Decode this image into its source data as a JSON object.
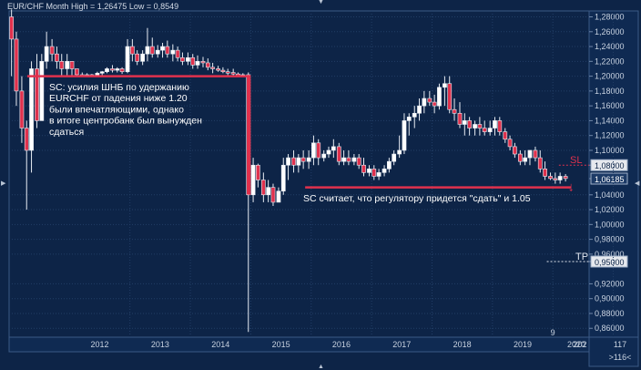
{
  "header": {
    "title": "EUR/CHF Month High = 1,26475 Low = 0,8549"
  },
  "colors": {
    "background": "#0d2447",
    "grid": "#223e66",
    "up_candle": "#ffffff",
    "down_candle": "#e0314d",
    "annotation_line": "#e0314d",
    "text": "#d6dde8"
  },
  "chart_data": {
    "type": "candlestick",
    "title": "EUR/CHF Month",
    "high_label": "High = 1,26475",
    "low_label": "Low = 0,8549",
    "ylim": [
      0.848,
      1.288
    ],
    "y_ticks": [
      "1,28000",
      "1,26000",
      "1,24000",
      "1,22000",
      "1,20000",
      "1,18000",
      "1,16000",
      "1,14000",
      "1,12000",
      "1,10000",
      "1,08000",
      "1,06185",
      "1,04000",
      "1,02000",
      "1,00000",
      "0,98000",
      "0,96000",
      "0,95000",
      "0,92000",
      "0,90000",
      "0,88000",
      "0,86000"
    ],
    "x_ticks": [
      "2012",
      "2013",
      "2014",
      "2015",
      "2016",
      "2017",
      "2018",
      "2019",
      "2020",
      "202"
    ],
    "x_extra": [
      "9"
    ],
    "current_price": "1,06185",
    "sl_price": "1,08000",
    "tp_price": "0,95000",
    "labels": {
      "sl": "SL",
      "tp": "TP"
    },
    "corner": {
      "top": "117",
      "bottom": ">116<"
    },
    "annotations": [
      {
        "text": "SC: усилия ШНБ по удержанию\nEURCHF от падения ниже 1.20\nбыли впечатляющими, однако\nв итоге центробанк был вынужден\nсдаться"
      },
      {
        "text": "SC считает, что регулятору придется \"сдать\" и 1.05"
      }
    ],
    "series": [
      {
        "values": [
          [
            2011.04,
            1.28,
            1.29,
            1.2,
            1.25
          ],
          [
            2011.12,
            1.25,
            1.26,
            1.16,
            1.18
          ],
          [
            2011.21,
            1.18,
            1.2,
            1.11,
            1.13
          ],
          [
            2011.29,
            1.13,
            1.14,
            1.02,
            1.1
          ],
          [
            2011.37,
            1.1,
            1.22,
            1.07,
            1.21
          ],
          [
            2011.46,
            1.21,
            1.23,
            1.13,
            1.14
          ],
          [
            2011.54,
            1.14,
            1.23,
            1.14,
            1.22
          ],
          [
            2011.62,
            1.22,
            1.26,
            1.21,
            1.24
          ],
          [
            2011.71,
            1.24,
            1.25,
            1.22,
            1.23
          ],
          [
            2011.79,
            1.23,
            1.24,
            1.21,
            1.22
          ],
          [
            2011.87,
            1.22,
            1.23,
            1.2,
            1.21
          ],
          [
            2011.96,
            1.21,
            1.23,
            1.2,
            1.22
          ],
          [
            2012.04,
            1.22,
            1.22,
            1.2,
            1.21
          ],
          [
            2012.12,
            1.21,
            1.21,
            1.2,
            1.202
          ],
          [
            2012.21,
            1.202,
            1.205,
            1.2,
            1.2
          ],
          [
            2012.29,
            1.2,
            1.204,
            1.2,
            1.202
          ],
          [
            2012.37,
            1.202,
            1.203,
            1.2,
            1.201
          ],
          [
            2012.46,
            1.201,
            1.206,
            1.2,
            1.204
          ],
          [
            2012.54,
            1.204,
            1.207,
            1.201,
            1.206
          ],
          [
            2012.62,
            1.206,
            1.212,
            1.204,
            1.21
          ],
          [
            2012.71,
            1.21,
            1.215,
            1.205,
            1.208
          ],
          [
            2012.79,
            1.208,
            1.212,
            1.205,
            1.21
          ],
          [
            2012.87,
            1.21,
            1.212,
            1.203,
            1.206
          ],
          [
            2012.96,
            1.206,
            1.25,
            1.204,
            1.24
          ],
          [
            2013.04,
            1.24,
            1.25,
            1.22,
            1.23
          ],
          [
            2013.12,
            1.23,
            1.235,
            1.215,
            1.22
          ],
          [
            2013.21,
            1.22,
            1.235,
            1.215,
            1.23
          ],
          [
            2013.29,
            1.23,
            1.265,
            1.22,
            1.24
          ],
          [
            2013.37,
            1.24,
            1.252,
            1.225,
            1.23
          ],
          [
            2013.46,
            1.23,
            1.242,
            1.225,
            1.235
          ],
          [
            2013.54,
            1.235,
            1.245,
            1.225,
            1.24
          ],
          [
            2013.62,
            1.24,
            1.248,
            1.225,
            1.23
          ],
          [
            2013.71,
            1.23,
            1.243,
            1.22,
            1.235
          ],
          [
            2013.79,
            1.235,
            1.24,
            1.22,
            1.225
          ],
          [
            2013.87,
            1.225,
            1.232,
            1.215,
            1.22
          ],
          [
            2013.96,
            1.22,
            1.232,
            1.215,
            1.225
          ],
          [
            2014.04,
            1.225,
            1.23,
            1.21,
            1.215
          ],
          [
            2014.12,
            1.215,
            1.228,
            1.21,
            1.22
          ],
          [
            2014.21,
            1.22,
            1.226,
            1.212,
            1.218
          ],
          [
            2014.29,
            1.218,
            1.224,
            1.208,
            1.212
          ],
          [
            2014.37,
            1.212,
            1.218,
            1.204,
            1.21
          ],
          [
            2014.46,
            1.21,
            1.214,
            1.206,
            1.208
          ],
          [
            2014.54,
            1.208,
            1.212,
            1.204,
            1.206
          ],
          [
            2014.62,
            1.206,
            1.21,
            1.2,
            1.205
          ],
          [
            2014.71,
            1.205,
            1.21,
            1.201,
            1.203
          ],
          [
            2014.79,
            1.203,
            1.205,
            1.2,
            1.201
          ],
          [
            2014.87,
            1.201,
            1.204,
            1.2,
            1.202
          ],
          [
            2014.96,
            1.202,
            1.205,
            0.855,
            1.04
          ],
          [
            2015.04,
            1.04,
            1.09,
            1.03,
            1.08
          ],
          [
            2015.12,
            1.08,
            1.082,
            1.05,
            1.06
          ],
          [
            2015.21,
            1.06,
            1.07,
            1.03,
            1.04
          ],
          [
            2015.29,
            1.04,
            1.06,
            1.03,
            1.05
          ],
          [
            2015.37,
            1.05,
            1.055,
            1.025,
            1.03
          ],
          [
            2015.46,
            1.03,
            1.05,
            1.03,
            1.045
          ],
          [
            2015.54,
            1.045,
            1.09,
            1.04,
            1.08
          ],
          [
            2015.62,
            1.08,
            1.095,
            1.06,
            1.09
          ],
          [
            2015.71,
            1.09,
            1.1,
            1.07,
            1.08
          ],
          [
            2015.79,
            1.08,
            1.095,
            1.07,
            1.09
          ],
          [
            2015.87,
            1.09,
            1.1,
            1.075,
            1.085
          ],
          [
            2015.96,
            1.085,
            1.1,
            1.075,
            1.09
          ],
          [
            2016.04,
            1.09,
            1.12,
            1.08,
            1.11
          ],
          [
            2016.12,
            1.11,
            1.115,
            1.08,
            1.09
          ],
          [
            2016.21,
            1.09,
            1.1,
            1.085,
            1.095
          ],
          [
            2016.29,
            1.095,
            1.105,
            1.09,
            1.1
          ],
          [
            2016.37,
            1.1,
            1.115,
            1.09,
            1.105
          ],
          [
            2016.46,
            1.105,
            1.11,
            1.08,
            1.085
          ],
          [
            2016.54,
            1.085,
            1.1,
            1.08,
            1.09
          ],
          [
            2016.62,
            1.09,
            1.1,
            1.08,
            1.085
          ],
          [
            2016.71,
            1.085,
            1.095,
            1.08,
            1.09
          ],
          [
            2016.79,
            1.09,
            1.095,
            1.075,
            1.08
          ],
          [
            2016.87,
            1.08,
            1.09,
            1.065,
            1.07
          ],
          [
            2016.96,
            1.07,
            1.08,
            1.065,
            1.075
          ],
          [
            2017.04,
            1.075,
            1.08,
            1.06,
            1.065
          ],
          [
            2017.12,
            1.065,
            1.075,
            1.06,
            1.07
          ],
          [
            2017.21,
            1.07,
            1.08,
            1.065,
            1.075
          ],
          [
            2017.29,
            1.075,
            1.09,
            1.07,
            1.085
          ],
          [
            2017.37,
            1.085,
            1.1,
            1.08,
            1.095
          ],
          [
            2017.46,
            1.095,
            1.12,
            1.09,
            1.1
          ],
          [
            2017.54,
            1.1,
            1.15,
            1.095,
            1.14
          ],
          [
            2017.62,
            1.14,
            1.15,
            1.12,
            1.145
          ],
          [
            2017.71,
            1.145,
            1.16,
            1.13,
            1.15
          ],
          [
            2017.79,
            1.15,
            1.17,
            1.14,
            1.16
          ],
          [
            2017.87,
            1.16,
            1.18,
            1.15,
            1.17
          ],
          [
            2017.96,
            1.17,
            1.18,
            1.16,
            1.165
          ],
          [
            2018.04,
            1.165,
            1.175,
            1.15,
            1.16
          ],
          [
            2018.12,
            1.16,
            1.19,
            1.155,
            1.185
          ],
          [
            2018.21,
            1.185,
            1.2,
            1.16,
            1.19
          ],
          [
            2018.29,
            1.19,
            1.2,
            1.15,
            1.155
          ],
          [
            2018.37,
            1.155,
            1.17,
            1.14,
            1.15
          ],
          [
            2018.46,
            1.15,
            1.165,
            1.13,
            1.135
          ],
          [
            2018.54,
            1.135,
            1.15,
            1.12,
            1.14
          ],
          [
            2018.62,
            1.14,
            1.145,
            1.12,
            1.13
          ],
          [
            2018.71,
            1.13,
            1.14,
            1.12,
            1.135
          ],
          [
            2018.79,
            1.135,
            1.145,
            1.12,
            1.13
          ],
          [
            2018.87,
            1.13,
            1.14,
            1.12,
            1.125
          ],
          [
            2018.96,
            1.125,
            1.14,
            1.12,
            1.13
          ],
          [
            2019.04,
            1.13,
            1.145,
            1.12,
            1.14
          ],
          [
            2019.12,
            1.14,
            1.145,
            1.12,
            1.125
          ],
          [
            2019.21,
            1.125,
            1.13,
            1.11,
            1.115
          ],
          [
            2019.29,
            1.115,
            1.12,
            1.1,
            1.105
          ],
          [
            2019.37,
            1.105,
            1.11,
            1.09,
            1.095
          ],
          [
            2019.46,
            1.095,
            1.1,
            1.08,
            1.085
          ],
          [
            2019.54,
            1.085,
            1.1,
            1.08,
            1.09
          ],
          [
            2019.62,
            1.09,
            1.1,
            1.08,
            1.1
          ],
          [
            2019.71,
            1.1,
            1.105,
            1.085,
            1.09
          ],
          [
            2019.79,
            1.09,
            1.1,
            1.07,
            1.075
          ],
          [
            2019.87,
            1.075,
            1.085,
            1.06,
            1.065
          ],
          [
            2019.96,
            1.065,
            1.07,
            1.06,
            1.062
          ],
          [
            2020.04,
            1.062,
            1.07,
            1.055,
            1.06
          ],
          [
            2020.12,
            1.06,
            1.07,
            1.055,
            1.065
          ],
          [
            2020.21,
            1.065,
            1.068,
            1.058,
            1.062
          ]
        ]
      }
    ],
    "sl_line_from": 2020.1
  }
}
